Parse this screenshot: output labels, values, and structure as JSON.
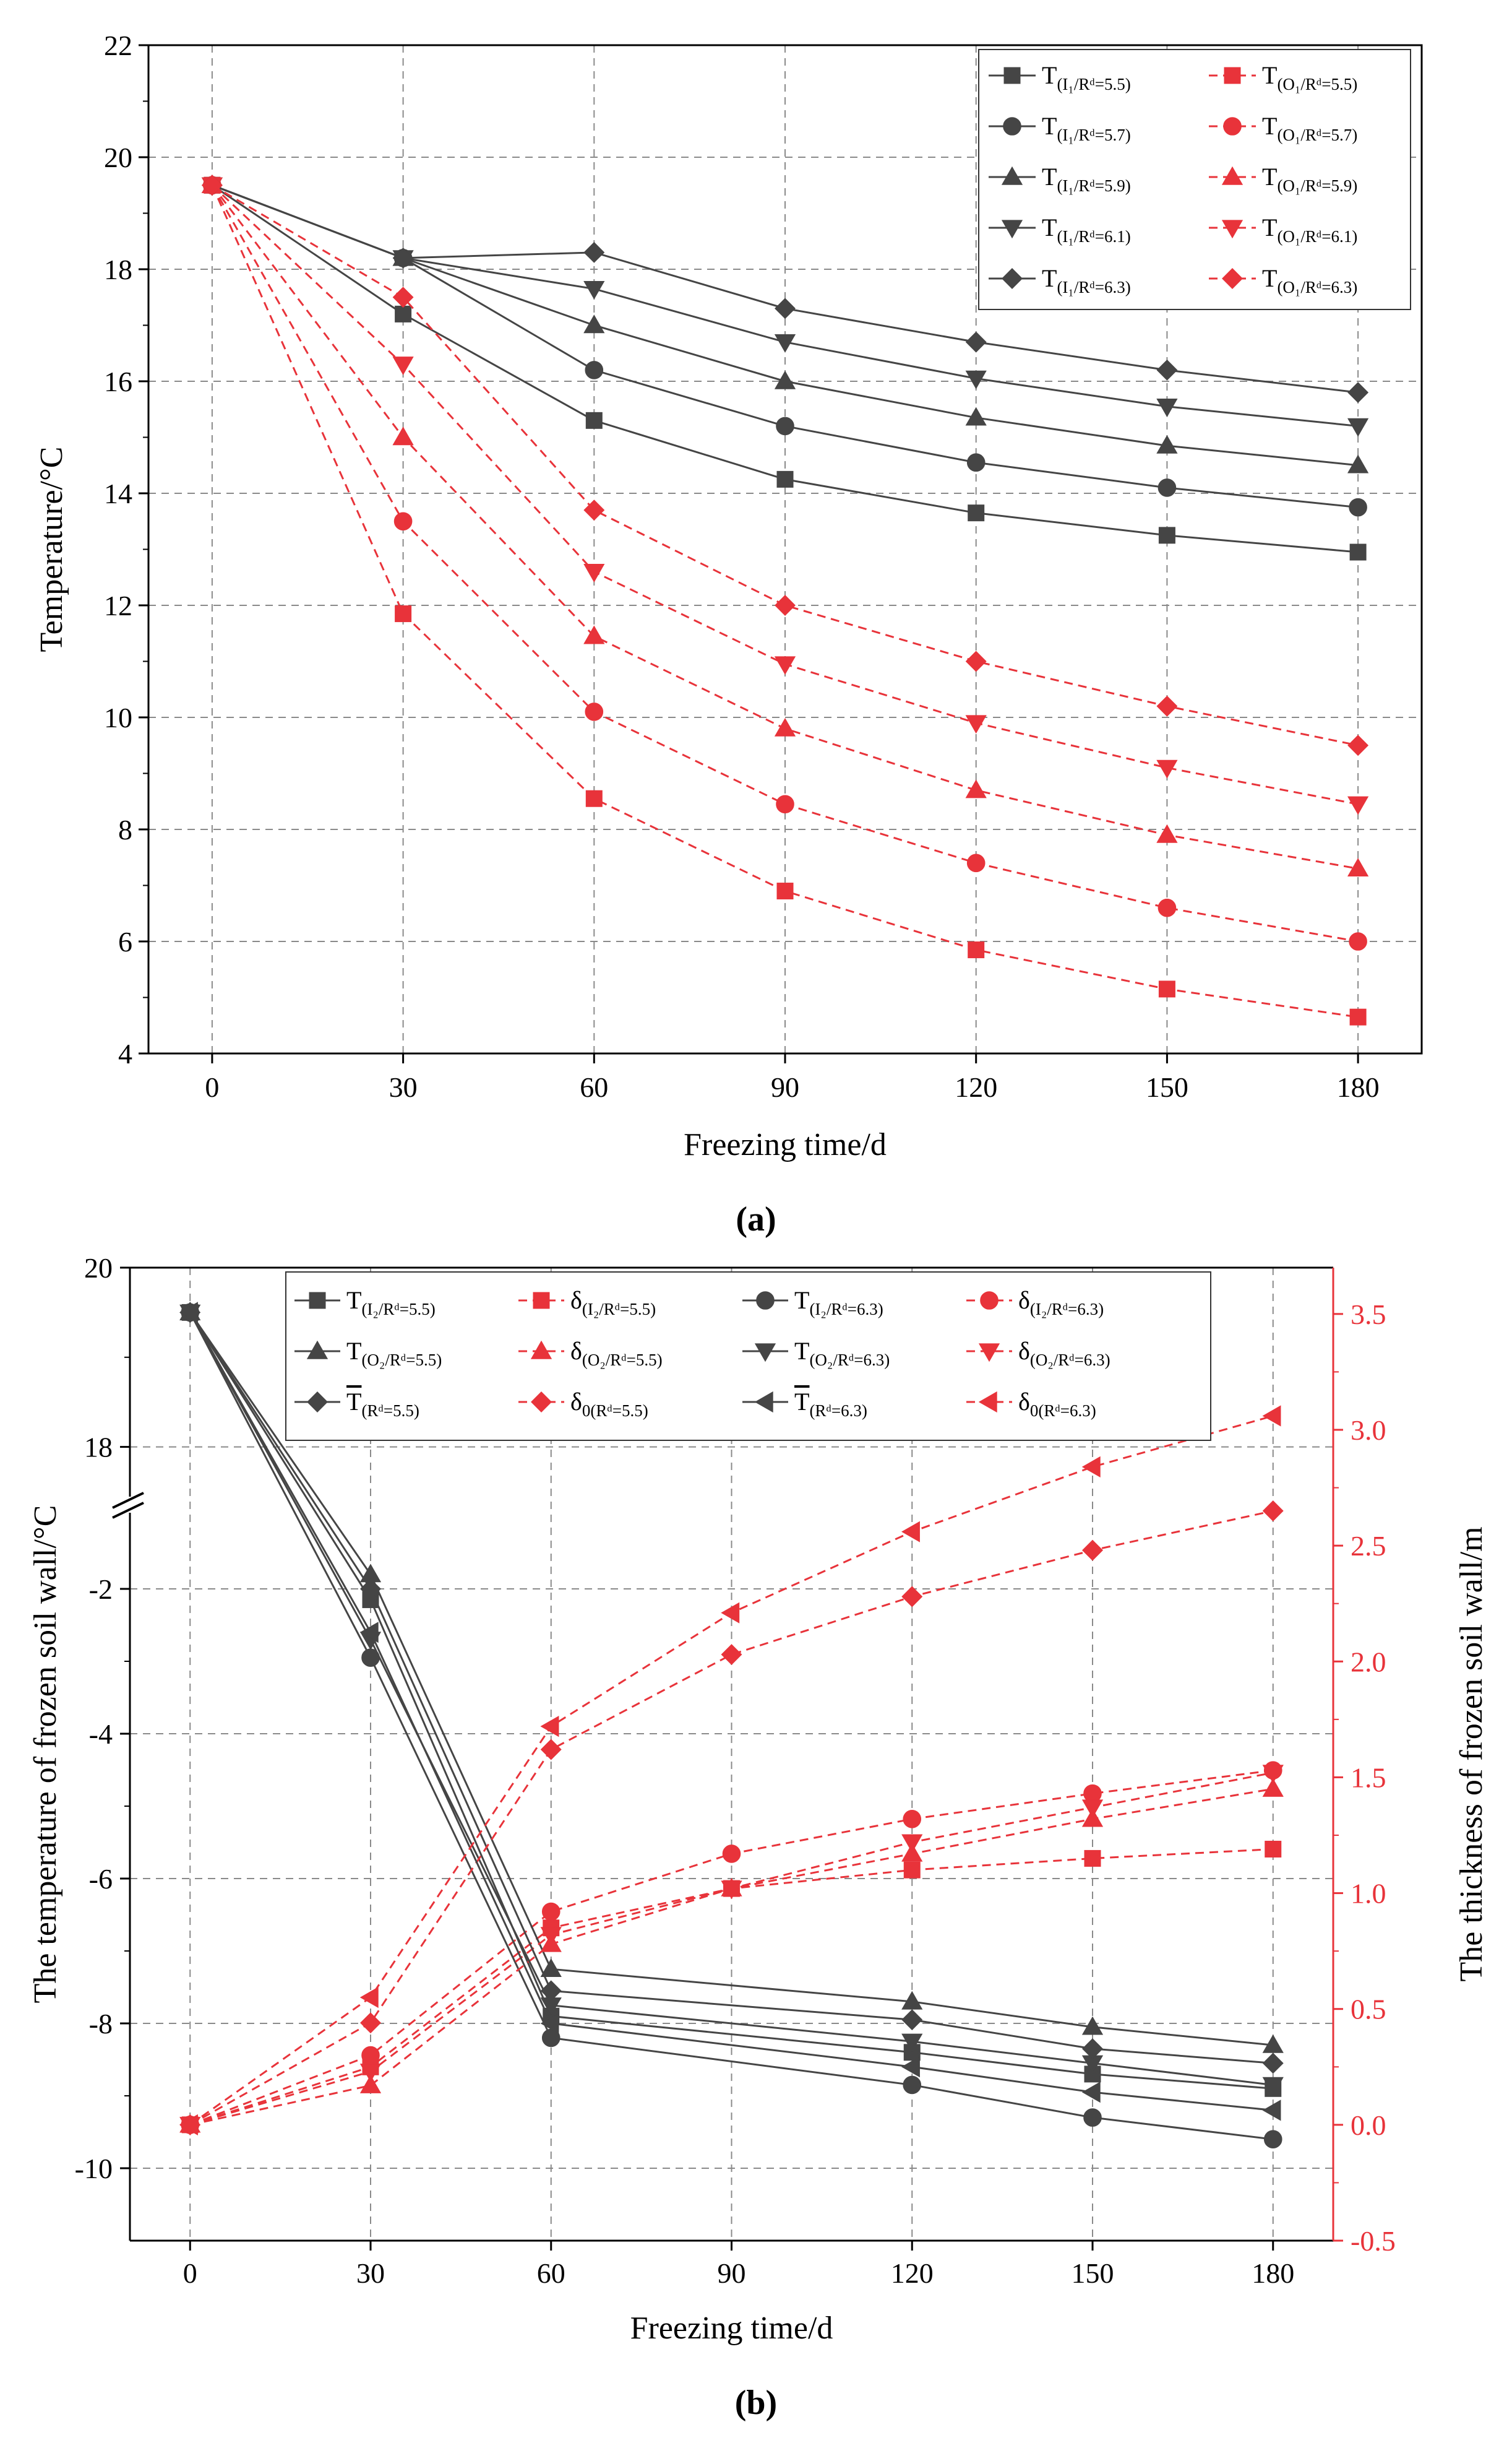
{
  "colors": {
    "dark": "#454545",
    "red": "#e8333a",
    "grid": "#8a8a8a",
    "axis": "#000000"
  },
  "chart_data": [
    {
      "type": "line",
      "panel": "a",
      "caption": "(a)",
      "xlabel": "Freezing time/d",
      "ylabel": "Temperature/°C",
      "xlim": [
        -10,
        190
      ],
      "ylim": [
        4,
        22
      ],
      "x_ticks": [
        0,
        30,
        60,
        90,
        120,
        150,
        180
      ],
      "y_ticks": [
        4,
        6,
        8,
        10,
        12,
        14,
        16,
        18,
        20,
        22
      ],
      "grid": true,
      "legend_position": "top-right",
      "x": [
        0,
        30,
        60,
        90,
        120,
        150,
        180
      ],
      "series": [
        {
          "name": "T(I1/Rd=5.5)",
          "main": "T",
          "sub": "(I₁/Rᵈ=5.5)",
          "color": "dark",
          "dash": false,
          "marker": "square",
          "values": [
            19.5,
            17.2,
            15.3,
            14.25,
            13.65,
            13.25,
            12.95
          ]
        },
        {
          "name": "T(O1/Rd=5.5)",
          "main": "T",
          "sub": "(O₁/Rᵈ=5.5)",
          "color": "red",
          "dash": true,
          "marker": "square",
          "values": [
            19.5,
            11.85,
            8.55,
            6.9,
            5.85,
            5.15,
            4.65
          ]
        },
        {
          "name": "T(I1/Rd=5.7)",
          "main": "T",
          "sub": "(I₁/Rᵈ=5.7)",
          "color": "dark",
          "dash": false,
          "marker": "circle",
          "values": [
            19.5,
            18.2,
            16.2,
            15.2,
            14.55,
            14.1,
            13.75
          ]
        },
        {
          "name": "T(O1/Rd=5.7)",
          "main": "T",
          "sub": "(O₁/Rᵈ=5.7)",
          "color": "red",
          "dash": true,
          "marker": "circle",
          "values": [
            19.5,
            13.5,
            10.1,
            8.45,
            7.4,
            6.6,
            6.0
          ]
        },
        {
          "name": "T(I1/Rd=5.9)",
          "main": "T",
          "sub": "(I₁/Rᵈ=5.9)",
          "color": "dark",
          "dash": false,
          "marker": "triangle-up",
          "values": [
            19.5,
            18.2,
            17.0,
            16.0,
            15.35,
            14.85,
            14.5
          ]
        },
        {
          "name": "T(O1/Rd=5.9)",
          "main": "T",
          "sub": "(O₁/Rᵈ=5.9)",
          "color": "red",
          "dash": true,
          "marker": "triangle-up",
          "values": [
            19.5,
            15.0,
            11.45,
            9.8,
            8.7,
            7.9,
            7.3
          ]
        },
        {
          "name": "T(I1/Rd=6.1)",
          "main": "T",
          "sub": "(I₁/Rᵈ=6.1)",
          "color": "dark",
          "dash": false,
          "marker": "triangle-down",
          "values": [
            19.5,
            18.2,
            17.65,
            16.7,
            16.05,
            15.55,
            15.2
          ]
        },
        {
          "name": "T(O1/Rd=6.1)",
          "main": "T",
          "sub": "(O₁/Rᵈ=6.1)",
          "color": "red",
          "dash": true,
          "marker": "triangle-down",
          "values": [
            19.5,
            16.3,
            12.6,
            10.95,
            9.9,
            9.1,
            8.45
          ]
        },
        {
          "name": "T(I1/Rd=6.3)",
          "main": "T",
          "sub": "(I₁/Rᵈ=6.3)",
          "color": "dark",
          "dash": false,
          "marker": "diamond",
          "values": [
            19.5,
            18.2,
            18.3,
            17.3,
            16.7,
            16.2,
            15.8
          ]
        },
        {
          "name": "T(O1/Rd=6.3)",
          "main": "T",
          "sub": "(O₁/Rᵈ=6.3)",
          "color": "red",
          "dash": true,
          "marker": "diamond",
          "values": [
            19.5,
            17.5,
            13.7,
            12.0,
            11.0,
            10.2,
            9.5
          ]
        }
      ]
    },
    {
      "type": "line",
      "panel": "b",
      "caption": "(b)",
      "xlabel": "Freezing time/d",
      "ylabel": "The temperature of frozen soil wall/°C",
      "ylabel_right": "The thickness of frozen soil wall/m",
      "xlim": [
        -10,
        190
      ],
      "ylim_lower": [
        -11,
        -1
      ],
      "ylim_upper": [
        17.5,
        20
      ],
      "axis_break": true,
      "y_ticks_lower": [
        -10,
        -8,
        -6,
        -4,
        -2
      ],
      "y_ticks_upper": [
        18,
        20
      ],
      "ylim_right": [
        -0.5,
        3.7
      ],
      "y_ticks_right": [
        -0.5,
        0.0,
        0.5,
        1.0,
        1.5,
        2.0,
        2.5,
        3.0,
        3.5
      ],
      "x_ticks": [
        0,
        30,
        60,
        90,
        120,
        150,
        180
      ],
      "grid": true,
      "legend_position": "top",
      "x": [
        0,
        30,
        60,
        90,
        120,
        150,
        180
      ],
      "series": [
        {
          "name": "T(I2/Rd=5.5)",
          "main": "T",
          "sub": "(I₂/Rᵈ=5.5)",
          "axis": "left",
          "color": "dark",
          "dash": false,
          "marker": "square",
          "values": [
            19.5,
            -2.15,
            -7.9,
            null,
            -8.4,
            -8.7,
            -8.9
          ]
        },
        {
          "name": "δ(I2/Rd=5.5)",
          "main": "δ",
          "sub": "(I₂/Rᵈ=5.5)",
          "axis": "right",
          "color": "red",
          "dash": true,
          "marker": "square",
          "values": [
            0.0,
            0.25,
            0.85,
            1.02,
            1.1,
            1.15,
            1.19
          ]
        },
        {
          "name": "T(I2/Rd=6.3)",
          "main": "T",
          "sub": "(I₂/Rᵈ=6.3)",
          "axis": "left",
          "color": "dark",
          "dash": false,
          "marker": "circle",
          "values": [
            19.5,
            -2.95,
            -8.2,
            null,
            -8.85,
            -9.3,
            -9.6
          ]
        },
        {
          "name": "δ(I2/Rd=6.3)",
          "main": "δ",
          "sub": "(I₂/Rᵈ=6.3)",
          "axis": "right",
          "color": "red",
          "dash": true,
          "marker": "circle",
          "values": [
            0.0,
            0.3,
            0.92,
            1.17,
            1.32,
            1.43,
            1.53
          ]
        },
        {
          "name": "T(O2/Rd=5.5)",
          "main": "T",
          "sub": "(O₂/Rᵈ=5.5)",
          "axis": "left",
          "color": "dark",
          "dash": false,
          "marker": "triangle-up",
          "values": [
            19.5,
            -1.8,
            -7.25,
            null,
            -7.7,
            -8.05,
            -8.3
          ]
        },
        {
          "name": "δ(O2/Rd=5.5)",
          "main": "δ",
          "sub": "(O₂/Rᵈ=5.5)",
          "axis": "right",
          "color": "red",
          "dash": true,
          "marker": "triangle-up",
          "values": [
            0.0,
            0.17,
            0.78,
            1.02,
            1.17,
            1.32,
            1.45
          ]
        },
        {
          "name": "T(O2/Rd=6.3)",
          "main": "T",
          "sub": "(O₂/Rᵈ=6.3)",
          "axis": "left",
          "color": "dark",
          "dash": false,
          "marker": "triangle-down",
          "values": [
            19.5,
            -2.7,
            -7.75,
            null,
            -8.25,
            -8.55,
            -8.85
          ]
        },
        {
          "name": "δ(O2/Rd=6.3)",
          "main": "δ",
          "sub": "(O₂/Rᵈ=6.3)",
          "axis": "right",
          "color": "red",
          "dash": true,
          "marker": "triangle-down",
          "values": [
            0.0,
            0.23,
            0.82,
            1.02,
            1.22,
            1.37,
            1.52
          ]
        },
        {
          "name": "T̄(Rd=5.5)",
          "main": "T",
          "overline": true,
          "sub": "(Rᵈ=5.5)",
          "axis": "left",
          "color": "dark",
          "dash": false,
          "marker": "diamond",
          "values": [
            19.5,
            -2.0,
            -7.55,
            null,
            -7.95,
            -8.35,
            -8.55
          ]
        },
        {
          "name": "δ0(Rd=5.5)",
          "main": "δ",
          "sub": "0(Rᵈ=5.5)",
          "axis": "right",
          "color": "red",
          "dash": true,
          "marker": "diamond",
          "values": [
            0.0,
            0.44,
            1.62,
            2.03,
            2.28,
            2.48,
            2.65
          ]
        },
        {
          "name": "T̄(Rd=6.3)",
          "main": "T",
          "overline": true,
          "sub": "(Rᵈ=6.3)",
          "axis": "left",
          "color": "dark",
          "dash": false,
          "marker": "triangle-left",
          "values": [
            19.5,
            -2.6,
            -8.0,
            null,
            -8.6,
            -8.95,
            -9.2
          ]
        },
        {
          "name": "δ0(Rd=6.3)",
          "main": "δ",
          "sub": "0(Rᵈ=6.3)",
          "axis": "right",
          "color": "red",
          "dash": true,
          "marker": "triangle-left",
          "values": [
            0.0,
            0.55,
            1.72,
            2.21,
            2.56,
            2.84,
            3.06
          ]
        }
      ]
    }
  ]
}
